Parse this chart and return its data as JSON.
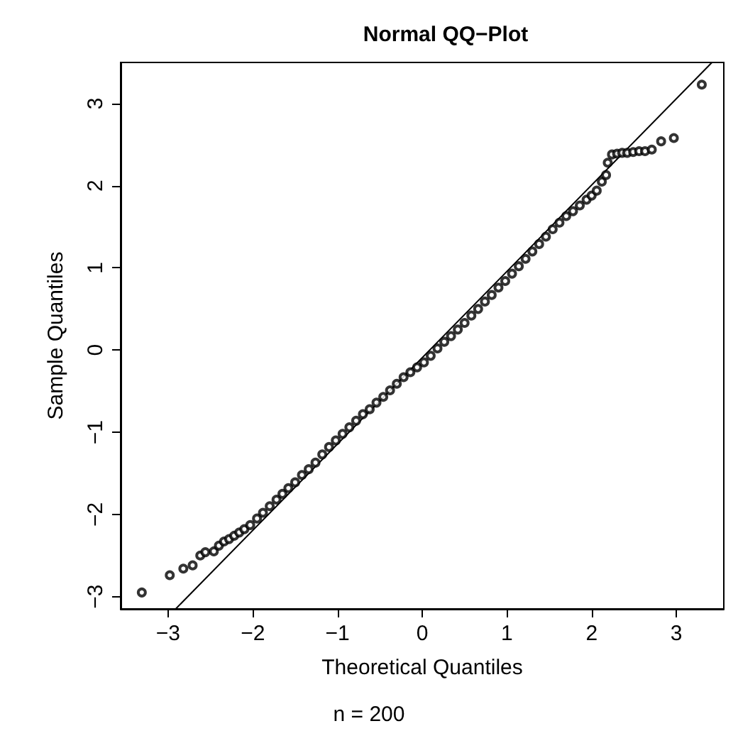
{
  "chart_data": {
    "type": "scatter",
    "title": "Normal QQ−Plot",
    "xlabel": "Theoretical Quantiles",
    "ylabel": "Sample Quantiles",
    "annotations": [
      "n = 200"
    ],
    "xlim": [
      -3.56,
      3.56
    ],
    "ylim": [
      -3.15,
      3.5
    ],
    "xticks": [
      {
        "value": -3,
        "label": "−3"
      },
      {
        "value": -2,
        "label": "−2"
      },
      {
        "value": -1,
        "label": "−1"
      },
      0,
      1,
      2,
      3
    ],
    "yticks": [
      {
        "value": -3,
        "label": "−3"
      },
      {
        "value": -2,
        "label": "−2"
      },
      {
        "value": -1,
        "label": "−1"
      },
      0,
      1,
      2,
      3
    ],
    "grid": false,
    "marker": "circle",
    "series": [
      {
        "color": "#000000",
        "x": [
          -3.31,
          -2.98,
          -2.82,
          -2.71,
          -2.62,
          -2.56,
          -2.46,
          -2.4,
          -2.34,
          -2.28,
          -2.22,
          -2.16,
          -2.1,
          -2.03,
          -1.95,
          -1.88,
          -1.8,
          -1.72,
          -1.65,
          -1.58,
          -1.5,
          -1.42,
          -1.34,
          -1.26,
          -1.18,
          -1.1,
          -1.02,
          -0.94,
          -0.86,
          -0.78,
          -0.7,
          -0.62,
          -0.54,
          -0.46,
          -0.38,
          -0.3,
          -0.22,
          -0.14,
          -0.06,
          0.02,
          0.1,
          0.18,
          0.26,
          0.34,
          0.42,
          0.5,
          0.58,
          0.66,
          0.74,
          0.82,
          0.9,
          0.98,
          1.06,
          1.14,
          1.22,
          1.3,
          1.38,
          1.46,
          1.54,
          1.62,
          1.7,
          1.78,
          1.86,
          1.94,
          2.0,
          2.06,
          2.12,
          2.17,
          2.19,
          2.24,
          2.3,
          2.36,
          2.42,
          2.49,
          2.56,
          2.63,
          2.71,
          2.82,
          2.97,
          3.3
        ],
        "values": [
          -2.95,
          -2.74,
          -2.66,
          -2.62,
          -2.5,
          -2.46,
          -2.45,
          -2.38,
          -2.33,
          -2.3,
          -2.26,
          -2.22,
          -2.18,
          -2.13,
          -2.05,
          -1.98,
          -1.9,
          -1.82,
          -1.75,
          -1.68,
          -1.61,
          -1.52,
          -1.45,
          -1.37,
          -1.27,
          -1.18,
          -1.1,
          -1.02,
          -0.94,
          -0.86,
          -0.78,
          -0.72,
          -0.64,
          -0.57,
          -0.49,
          -0.41,
          -0.33,
          -0.27,
          -0.21,
          -0.15,
          -0.07,
          0.02,
          0.1,
          0.17,
          0.25,
          0.33,
          0.42,
          0.5,
          0.59,
          0.67,
          0.76,
          0.84,
          0.93,
          1.02,
          1.11,
          1.2,
          1.29,
          1.38,
          1.47,
          1.55,
          1.63,
          1.69,
          1.76,
          1.83,
          1.88,
          1.94,
          2.05,
          2.13,
          2.28,
          2.38,
          2.39,
          2.4,
          2.4,
          2.41,
          2.42,
          2.42,
          2.44,
          2.54,
          2.58,
          3.23
        ]
      },
      {
        "type": "line",
        "color": "#000000",
        "marker": "none",
        "line_style": "solid",
        "x": [
          -2.91,
          3.42
        ],
        "values": [
          -3.15,
          3.5
        ]
      }
    ]
  }
}
